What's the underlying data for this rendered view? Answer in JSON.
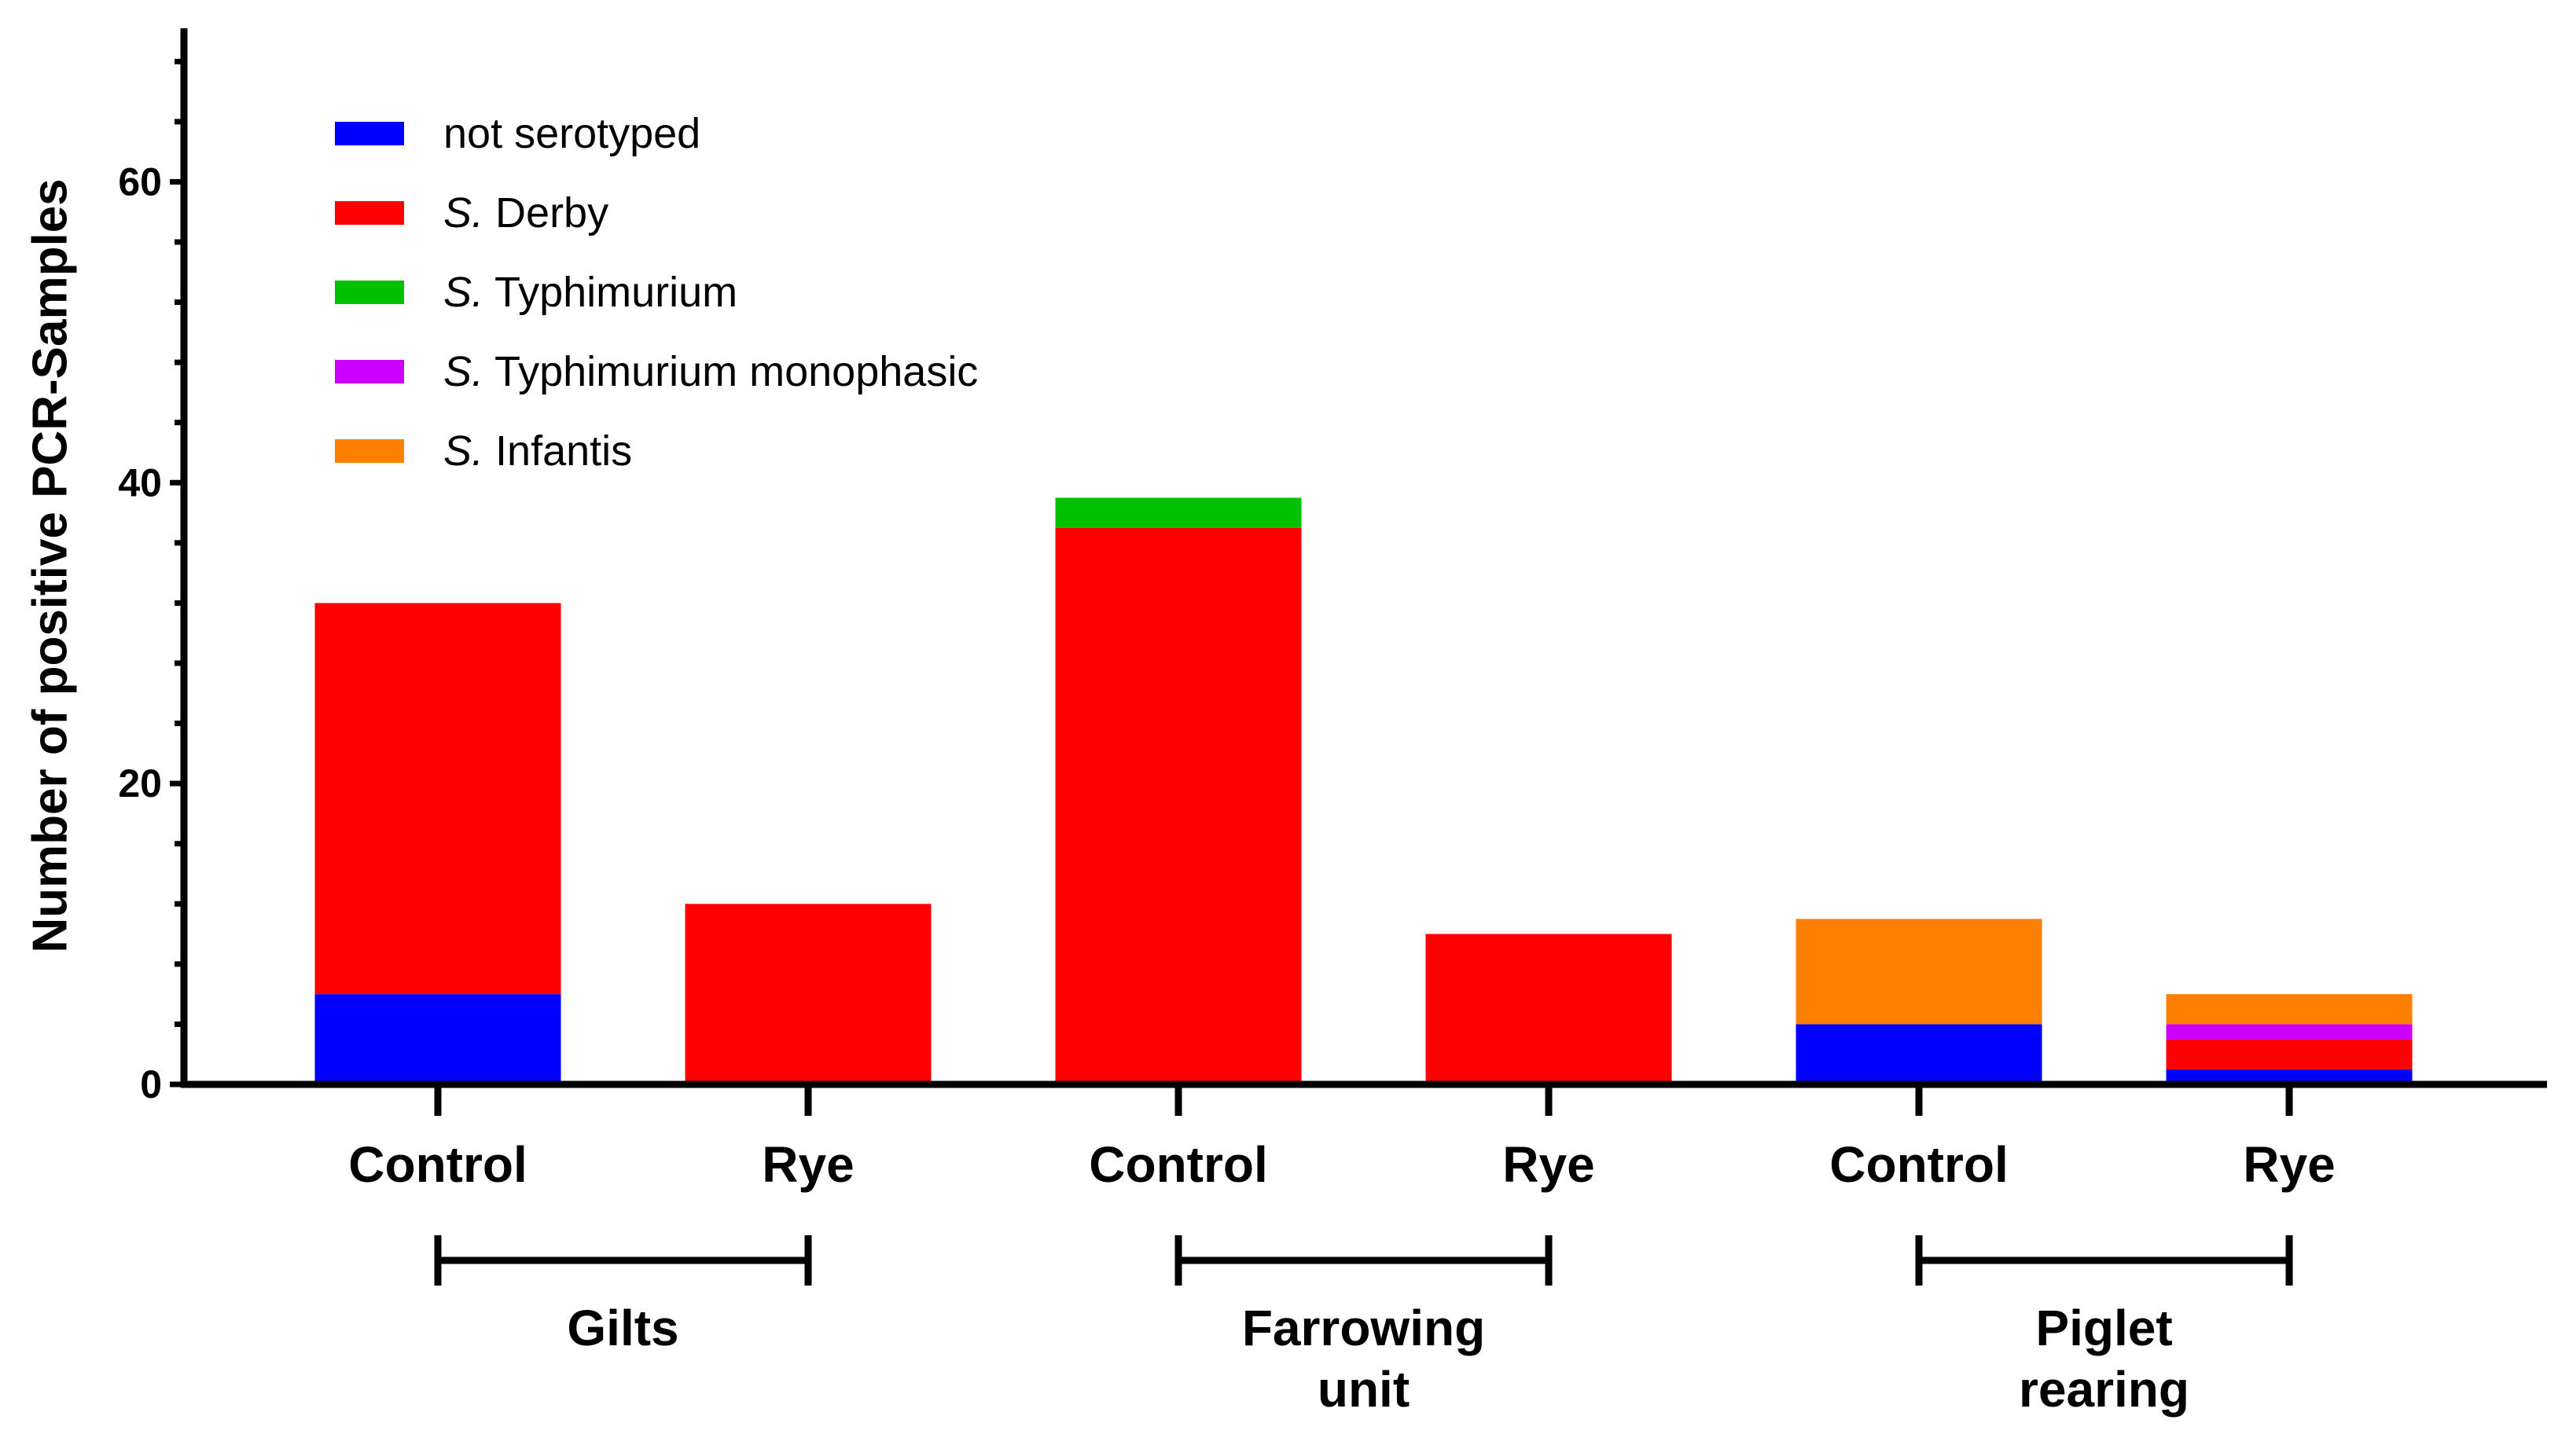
{
  "chart_data": {
    "type": "bar",
    "stacked": true,
    "title": "",
    "xlabel": "",
    "ylabel": "Number of positive PCR-Samples",
    "ylim": [
      0,
      70
    ],
    "yticks": [
      0,
      20,
      40,
      60
    ],
    "categories": [
      "Control",
      "Rye",
      "Control",
      "Rye",
      "Control",
      "Rye"
    ],
    "groups": [
      {
        "label": "Gilts",
        "span": [
          0,
          1
        ]
      },
      {
        "label": "Farrowing unit",
        "span": [
          2,
          3
        ]
      },
      {
        "label": "Piglet rearing",
        "span": [
          4,
          5
        ]
      }
    ],
    "series": [
      {
        "name": "not serotyped",
        "prefix": "",
        "suffix": "not serotyped",
        "color": "#0000ff",
        "values": [
          6,
          0,
          0,
          0,
          4,
          1
        ]
      },
      {
        "name": "S. Derby",
        "prefix": "S.",
        "suffix": " Derby",
        "color": "#ff0000",
        "values": [
          26,
          12,
          37,
          10,
          0,
          2
        ]
      },
      {
        "name": "S. Typhimurium",
        "prefix": "S.",
        "suffix": " Typhimurium",
        "color": "#00c000",
        "values": [
          0,
          0,
          2,
          0,
          0,
          0
        ]
      },
      {
        "name": "S. Typhimurium monophasic",
        "prefix": "S.",
        "suffix": " Typhimurium monophasic",
        "color": "#cc00ff",
        "values": [
          0,
          0,
          0,
          0,
          0,
          1
        ]
      },
      {
        "name": "S. Infantis",
        "prefix": "S.",
        "suffix": " Infantis",
        "color": "#ff8000",
        "values": [
          0,
          0,
          0,
          0,
          7,
          2
        ]
      }
    ],
    "legend_position": "top-left"
  }
}
